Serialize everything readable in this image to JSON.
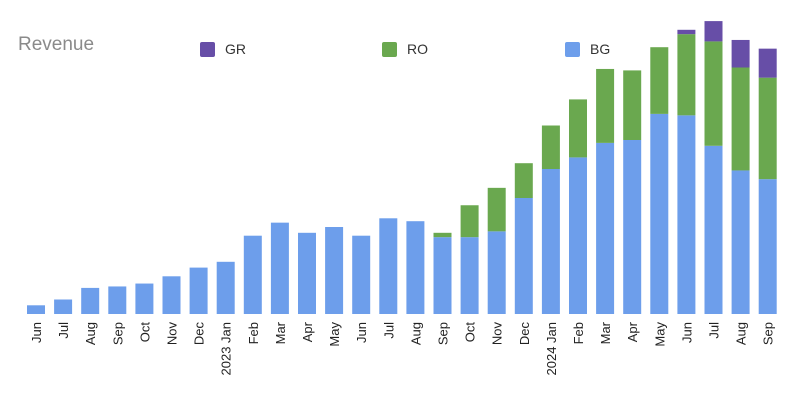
{
  "chart_data": {
    "type": "bar",
    "stacked": true,
    "title": "Revenue",
    "legend_position": "top",
    "grid": false,
    "ylim": [
      0,
      100
    ],
    "categories": [
      "Jun",
      "Jul",
      "Aug",
      "Sep",
      "Oct",
      "Nov",
      "Dec",
      "2023 Jan",
      "Feb",
      "Mar",
      "Apr",
      "May",
      "Jun",
      "Jul",
      "Aug",
      "Sep",
      "Oct",
      "Nov",
      "Dec",
      "2024 Jan",
      "Feb",
      "Mar",
      "Apr",
      "May",
      "Jun",
      "Jul",
      "Aug",
      "Sep"
    ],
    "series": [
      {
        "name": "BG",
        "color": "#6d9eeb",
        "values": [
          3,
          5,
          9,
          9.5,
          10.5,
          13,
          16,
          18,
          27,
          31.5,
          28,
          30,
          27,
          33,
          32,
          26.5,
          26.5,
          28.5,
          40,
          50,
          54,
          59,
          60,
          69,
          68.5,
          58,
          49.5,
          46.5
        ]
      },
      {
        "name": "RO",
        "color": "#6aa84f",
        "values": [
          0,
          0,
          0,
          0,
          0,
          0,
          0,
          0,
          0,
          0,
          0,
          0,
          0,
          0,
          0,
          1.5,
          11,
          15,
          12,
          15,
          20,
          25.5,
          24,
          23,
          28,
          36,
          35.5,
          35
        ]
      },
      {
        "name": "GR",
        "color": "#674ea7",
        "values": [
          0,
          0,
          0,
          0,
          0,
          0,
          0,
          0,
          0,
          0,
          0,
          0,
          0,
          0,
          0,
          0,
          0,
          0,
          0,
          0,
          0,
          0,
          0,
          0,
          1.5,
          7,
          9.5,
          10
        ]
      }
    ],
    "legend": [
      {
        "name": "GR",
        "color": "#674ea7"
      },
      {
        "name": "RO",
        "color": "#6aa84f"
      },
      {
        "name": "BG",
        "color": "#6d9eeb"
      }
    ]
  }
}
